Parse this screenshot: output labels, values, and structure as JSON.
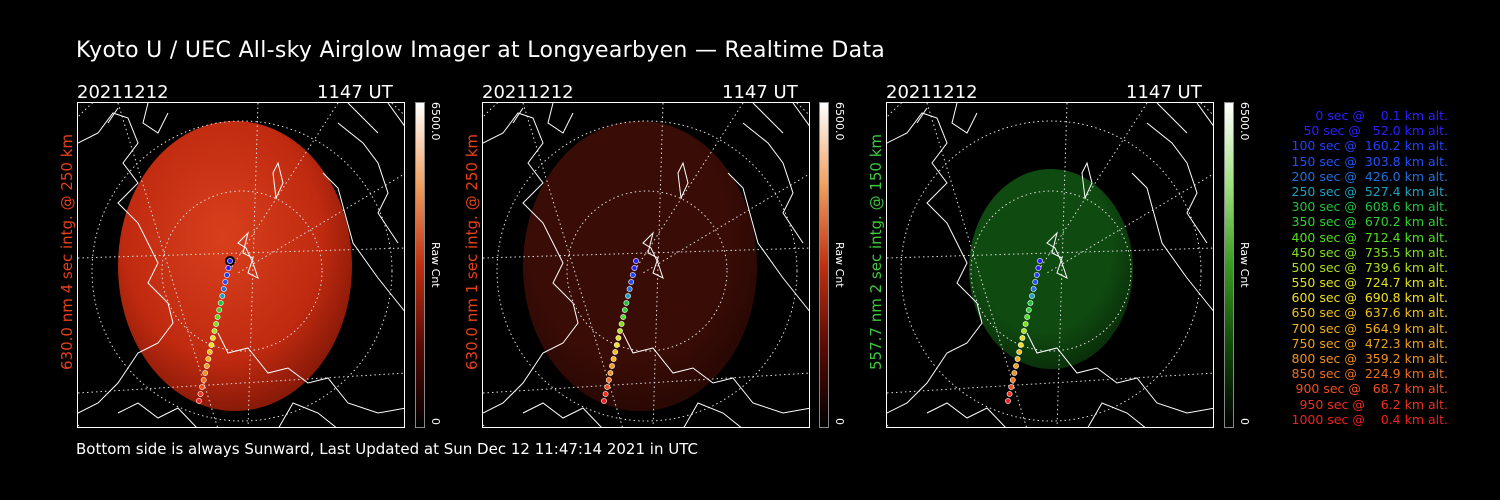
{
  "title": "Kyoto U / UEC All-sky Airglow Imager at Longyearbyen — Realtime Data",
  "panels": [
    {
      "date": "20211212",
      "time": "1147 UT",
      "ylabel": "630.0 nm 4 sec intg. @ 250 km",
      "label_color": "#e8401a",
      "cbar_max": "6500.0",
      "cbar_min": "0",
      "cbar_unit": "Raw Cnt",
      "glow": "#c02a10",
      "glow_edge": "#8a1a08"
    },
    {
      "date": "20211212",
      "time": "1147 UT",
      "ylabel": "630.0 nm 1 sec intg. @ 250 km",
      "label_color": "#e8401a",
      "cbar_max": "6500.0",
      "cbar_min": "0",
      "cbar_unit": "Raw Cnt",
      "glow": "#3a0c06",
      "glow_edge": "#2a0804"
    },
    {
      "date": "20211212",
      "time": "1147 UT",
      "ylabel": "557.7 nm 2 sec intg. @ 150 km",
      "label_color": "#3ec83e",
      "cbar_max": "6500.0",
      "cbar_min": "0",
      "cbar_unit": "Raw Cnt",
      "glow": "#0f4a10",
      "glow_edge": "#0a300a"
    }
  ],
  "footer": "Bottom side is always Sunward, Last Updated at Sun Dec 12 11:47:14 2021 in UTC",
  "legend": [
    {
      "text": "   0 sec @    0.1 km alt.",
      "color": "#2a20ff"
    },
    {
      "text": "  50 sec @   52.0 km alt.",
      "color": "#2a20ff"
    },
    {
      "text": " 100 sec @  160.2 km alt.",
      "color": "#2040ff"
    },
    {
      "text": " 150 sec @  303.8 km alt.",
      "color": "#2050ff"
    },
    {
      "text": " 200 sec @  426.0 km alt.",
      "color": "#2070e0"
    },
    {
      "text": " 250 sec @  527.4 km alt.",
      "color": "#20a0c0"
    },
    {
      "text": " 300 sec @  608.6 km alt.",
      "color": "#20c040"
    },
    {
      "text": " 350 sec @  670.2 km alt.",
      "color": "#30d030"
    },
    {
      "text": " 400 sec @  712.4 km alt.",
      "color": "#50e020"
    },
    {
      "text": " 450 sec @  735.5 km alt.",
      "color": "#80e020"
    },
    {
      "text": " 500 sec @  739.6 km alt.",
      "color": "#b0e020"
    },
    {
      "text": " 550 sec @  724.7 km alt.",
      "color": "#e0e020"
    },
    {
      "text": " 600 sec @  690.8 km alt.",
      "color": "#f0e020"
    },
    {
      "text": " 650 sec @  637.6 km alt.",
      "color": "#f0c020"
    },
    {
      "text": " 700 sec @  564.9 km alt.",
      "color": "#f0b020"
    },
    {
      "text": " 750 sec @  472.3 km alt.",
      "color": "#f0a020"
    },
    {
      "text": " 800 sec @  359.2 km alt.",
      "color": "#f09020"
    },
    {
      "text": " 850 sec @  224.9 km alt.",
      "color": "#f07020"
    },
    {
      "text": " 900 sec @   68.7 km alt.",
      "color": "#f05020"
    },
    {
      "text": " 950 sec @    6.2 km alt.",
      "color": "#f03020"
    },
    {
      "text": "1000 sec @    0.4 km alt.",
      "color": "#f02020"
    }
  ]
}
